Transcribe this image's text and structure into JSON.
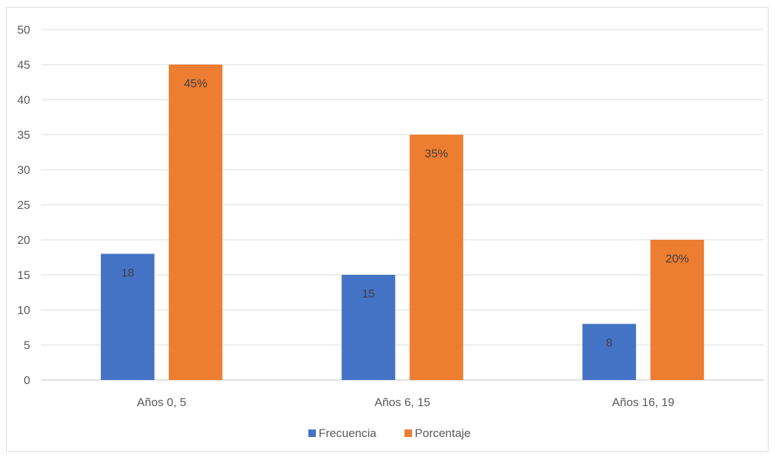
{
  "chart_data": {
    "type": "bar",
    "categories": [
      "Años 0, 5",
      "Años 6, 15",
      "Años 16, 19"
    ],
    "series": [
      {
        "name": "Frecuencia",
        "values": [
          18,
          15,
          8
        ],
        "labels": [
          "18",
          "15",
          "8"
        ],
        "color": "#4472c4"
      },
      {
        "name": "Porcentaje",
        "values": [
          45,
          35,
          20
        ],
        "labels": [
          "45%",
          "35%",
          "20%"
        ],
        "color": "#ed7d31"
      }
    ],
    "ylim": [
      0,
      50
    ],
    "yticks": [
      "0",
      "5",
      "10",
      "15",
      "20",
      "25",
      "30",
      "35",
      "40",
      "45",
      "50"
    ],
    "grid": true,
    "legend_position": "bottom",
    "data_label_position": "inside-end"
  }
}
